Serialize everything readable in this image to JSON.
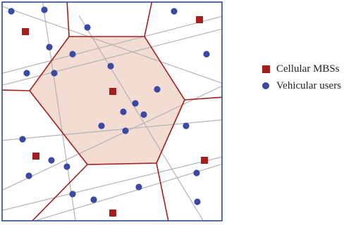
{
  "legend": {
    "mbs_label": "Cellular MBSs",
    "vehicle_label": "Vehicular users"
  },
  "colors": {
    "frame": "#2b4a9b",
    "cell_border": "#a51d1d",
    "center_cell_fill": "#f3ddd3",
    "road": "#b3b3b3",
    "mbs": "#a51d1d",
    "vehicle": "#3a4aa4"
  }
}
